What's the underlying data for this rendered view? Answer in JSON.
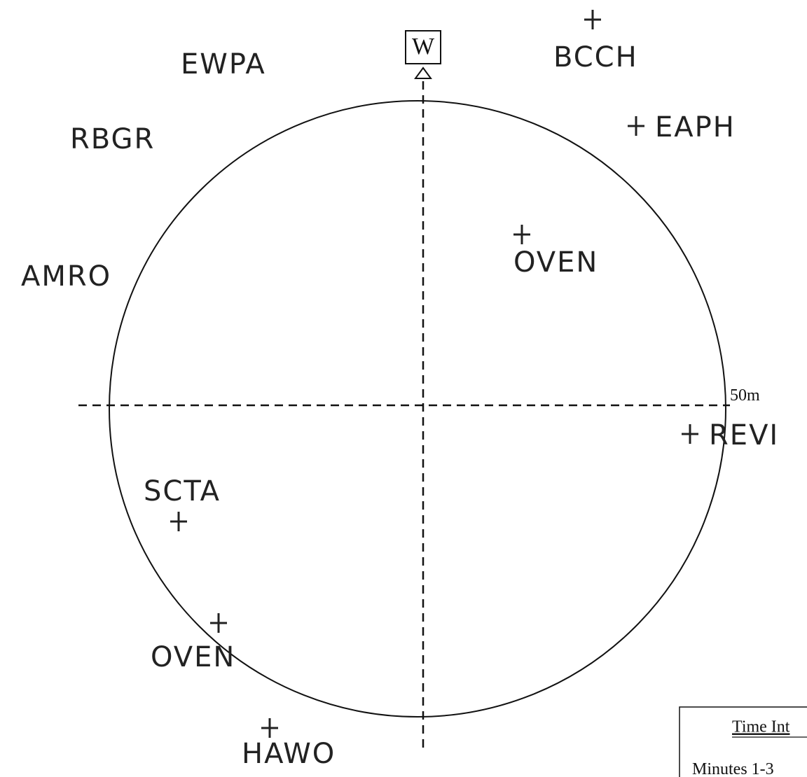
{
  "direction": "W",
  "scale_label": "50m",
  "observations": [
    {
      "label": "EWPA"
    },
    {
      "label": "BCCH"
    },
    {
      "label": "RBGR"
    },
    {
      "label": "EAPH"
    },
    {
      "label": "OVEN"
    },
    {
      "label": "AMRO"
    },
    {
      "label": "REVI"
    },
    {
      "label": "SCTA"
    },
    {
      "label": "OVEN"
    },
    {
      "label": "HAWO"
    }
  ],
  "legend": {
    "title": "Time Int",
    "rows": [
      "Minutes 1-3"
    ]
  }
}
